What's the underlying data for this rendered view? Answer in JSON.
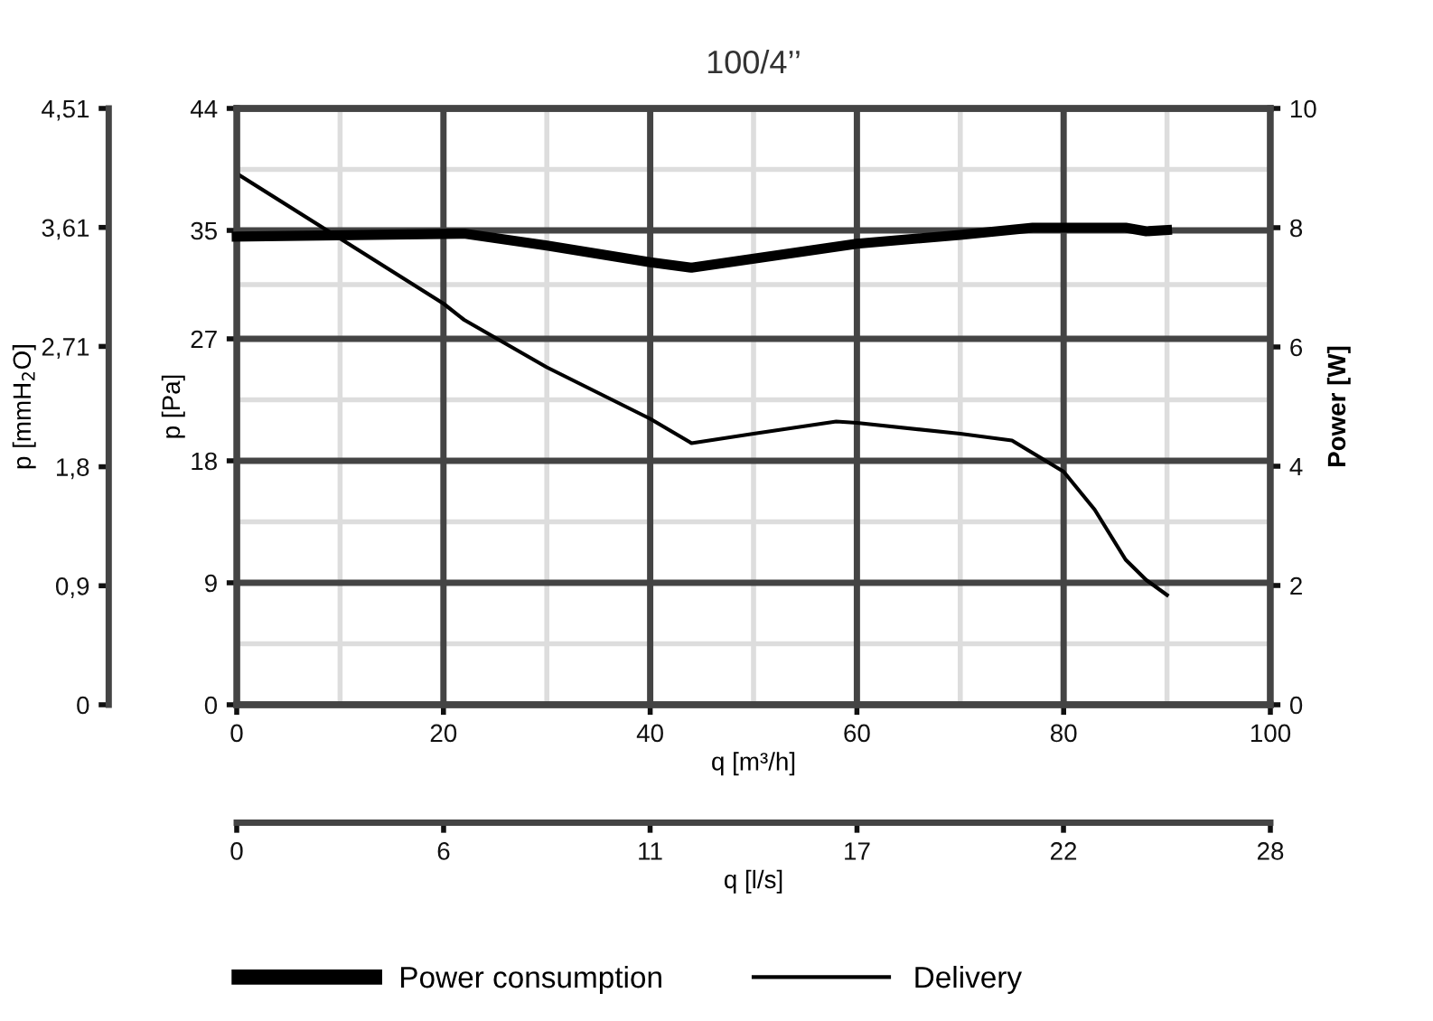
{
  "chart_data": {
    "type": "line",
    "title": "100/4’’",
    "xlabel": "q [m³/h]",
    "ylabel": "p [Pa]",
    "y2label": "Power [W]",
    "y3label": "p [mmH$_{2}$O]",
    "x2label": "q [l/s]",
    "xlim": [
      0,
      100
    ],
    "xticks": [
      0,
      20,
      40,
      60,
      80,
      100
    ],
    "ylim": [
      0,
      44
    ],
    "yticks": [
      0,
      9,
      18,
      27,
      35,
      44
    ],
    "y2lim": [
      0,
      10
    ],
    "y2ticks": [
      0,
      2,
      4,
      6,
      8,
      10
    ],
    "y3lim": [
      0,
      4.51
    ],
    "y3ticks": [
      0,
      {
        "value": 0.9,
        "label": "0,9"
      },
      {
        "value": 1.8,
        "label": "1,8"
      },
      {
        "value": 2.71,
        "label": "2,71"
      },
      {
        "value": 3.61,
        "label": "3,61"
      },
      {
        "value": 4.51,
        "label": "4,51"
      }
    ],
    "x2lim": [
      0,
      27.78
    ],
    "x2ticks": [
      0,
      {
        "value": 5.56,
        "label": "6"
      },
      {
        "value": 11.11,
        "label": "11"
      },
      {
        "value": 16.67,
        "label": "17"
      },
      {
        "value": 22.22,
        "label": "22"
      },
      {
        "value": 27.78,
        "label": "28"
      }
    ],
    "grid": true,
    "legend": "bottom",
    "marker": "none",
    "line_style": "solid",
    "series": [
      {
        "name": "Power consumption",
        "color": "#000000",
        "axis": "y2",
        "x": [
          0,
          22,
          30,
          40,
          44,
          60,
          70,
          77,
          86,
          88,
          90
        ],
        "values": [
          7.85,
          7.9,
          7.7,
          7.42,
          7.33,
          7.73,
          7.88,
          8.0,
          8.0,
          7.94,
          7.96
        ]
      },
      {
        "name": "Delivery",
        "color": "#000000",
        "axis": "y",
        "x": [
          0,
          20,
          22,
          30,
          40,
          44,
          50,
          58,
          60,
          70,
          75,
          80,
          83,
          86,
          88,
          90
        ],
        "values": [
          39.2,
          29.6,
          28.4,
          24.9,
          21.1,
          19.3,
          20.0,
          20.9,
          20.8,
          20.0,
          19.5,
          17.2,
          14.4,
          10.7,
          9.2,
          8.1
        ]
      }
    ]
  }
}
